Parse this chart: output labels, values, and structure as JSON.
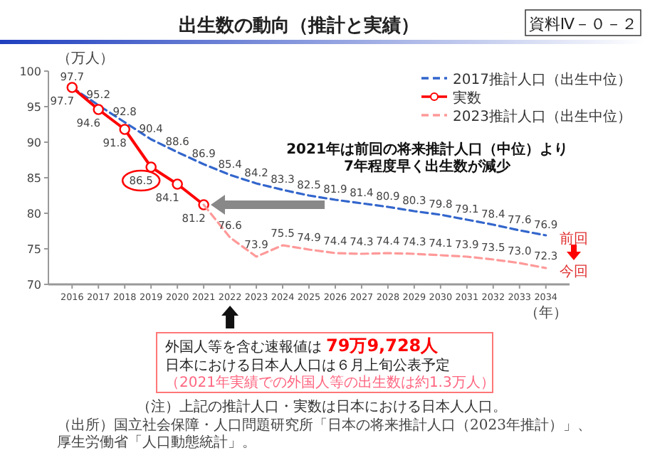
{
  "chart_data": {
    "type": "line",
    "title": "出生数の動向（推計と実績）",
    "ylabel": "（万人）",
    "xlabel": "（年）",
    "categories": [
      "2016",
      "2017",
      "2018",
      "2019",
      "2020",
      "2021",
      "2022",
      "2023",
      "2024",
      "2025",
      "2026",
      "2027",
      "2028",
      "2029",
      "2030",
      "2031",
      "2032",
      "2033",
      "2034"
    ],
    "series": [
      {
        "name": "2017推計人口（出生中位）",
        "color": "#3366cc",
        "line_style": "dashed",
        "marker": "none",
        "values": [
          97.7,
          95.2,
          92.8,
          90.4,
          88.6,
          86.9,
          85.4,
          84.2,
          83.3,
          82.5,
          81.9,
          81.4,
          80.9,
          80.3,
          79.8,
          79.1,
          78.4,
          77.6,
          76.9
        ],
        "value_labels": [
          "97.7",
          "95.2",
          "92.8",
          "90.4",
          "88.6",
          "86.9",
          "85.4",
          "84.2",
          "83.3",
          "82.5",
          "81.9",
          "81.4",
          "80.9",
          "80.3",
          "79.8",
          "79.1",
          "78.4",
          "77.6",
          "76.9"
        ]
      },
      {
        "name": "実数",
        "color": "#ff0000",
        "line_style": "solid",
        "marker": "circle",
        "values": [
          97.7,
          94.6,
          91.8,
          86.5,
          84.1,
          81.2,
          null,
          null,
          null,
          null,
          null,
          null,
          null,
          null,
          null,
          null,
          null,
          null,
          null
        ],
        "value_labels": [
          "97.7",
          "94.6",
          "91.8",
          "86.5",
          "84.1",
          "81.2",
          null,
          null,
          null,
          null,
          null,
          null,
          null,
          null,
          null,
          null,
          null,
          null,
          null
        ]
      },
      {
        "name": "2023推計人口（出生中位）",
        "color": "#ff9999",
        "line_style": "dashed",
        "marker": "none",
        "values": [
          null,
          null,
          null,
          null,
          null,
          81.2,
          76.6,
          73.9,
          75.5,
          74.9,
          74.4,
          74.3,
          74.4,
          74.3,
          74.1,
          73.9,
          73.5,
          73.0,
          72.3
        ],
        "value_labels": [
          null,
          null,
          null,
          null,
          null,
          null,
          "76.6",
          "73.9",
          "75.5",
          "74.9",
          "74.4",
          "74.3",
          "74.4",
          "74.3",
          "74.1",
          "73.9",
          "73.5",
          "73.0",
          "72.3"
        ]
      }
    ],
    "ylim": [
      70,
      100
    ],
    "yticks": [
      70,
      75,
      80,
      85,
      90,
      95,
      100
    ],
    "grid": false,
    "legend": "top right",
    "annotations": [
      "2021年は前回の将来推計人口（中位）より",
      "7年程度早く出生数が減少",
      "前回",
      "今回",
      "外国人等を含む速報値は",
      "79万9,728人",
      "日本における日本人人口は６月上旬公表予定",
      "（2021年実績での外国人等の出生数は約1.3万人）",
      "（注）上記の推計人口・実数は日本における日本人人口。",
      "（出所）国立社会保障・人口問題研究所「日本の将来推計人口（2023年推計）」、",
      "厚生労働省「人口動態統計」。",
      "資料Ⅳ－０－２"
    ]
  }
}
